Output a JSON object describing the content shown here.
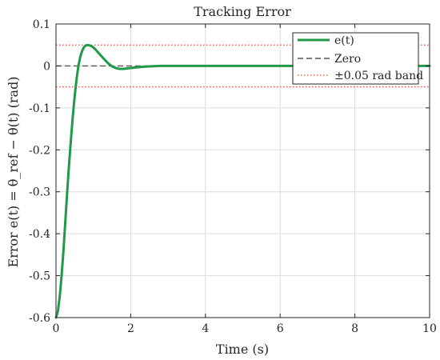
{
  "chart_data": {
    "type": "line",
    "title": "Tracking Error",
    "xlabel": "Time (s)",
    "ylabel": "Error e(t) = θ_ref − θ(t) (rad)",
    "xlim": [
      0,
      10
    ],
    "ylim": [
      -0.6,
      0.1
    ],
    "xticks": [
      0,
      2,
      4,
      6,
      8,
      10
    ],
    "xtick_labels": [
      "0",
      "2",
      "4",
      "6",
      "8",
      "10"
    ],
    "yticks": [
      -0.6,
      -0.5,
      -0.4,
      -0.3,
      -0.2,
      -0.1,
      0,
      0.1
    ],
    "ytick_labels": [
      "-0.6",
      "-0.5",
      "-0.4",
      "-0.3",
      "-0.2",
      "-0.1",
      "0",
      "0.1"
    ],
    "grid": true,
    "legend_position": "top-right",
    "series": [
      {
        "name": "e(t)",
        "style": "solid",
        "color": "#1f9a48",
        "x": [
          0,
          0.05,
          0.1,
          0.15,
          0.2,
          0.25,
          0.3,
          0.35,
          0.4,
          0.45,
          0.5,
          0.55,
          0.6,
          0.65,
          0.7,
          0.75,
          0.8,
          0.85,
          0.9,
          0.95,
          1.0,
          1.05,
          1.1,
          1.2,
          1.3,
          1.4,
          1.5,
          1.6,
          1.7,
          1.8,
          1.9,
          2.0,
          2.2,
          2.4,
          2.6,
          2.8,
          3.0,
          3.5,
          4.0,
          5.0,
          6.0,
          7.0,
          8.0,
          9.0,
          10.0
        ],
        "y": [
          -0.6,
          -0.585,
          -0.55,
          -0.5,
          -0.44,
          -0.37,
          -0.3,
          -0.235,
          -0.175,
          -0.12,
          -0.072,
          -0.032,
          0.0,
          0.022,
          0.036,
          0.045,
          0.049,
          0.05,
          0.049,
          0.047,
          0.044,
          0.04,
          0.035,
          0.025,
          0.015,
          0.006,
          -0.001,
          -0.005,
          -0.007,
          -0.007,
          -0.006,
          -0.005,
          -0.003,
          -0.0015,
          -0.0005,
          0.0,
          0.0,
          0.0,
          0.0,
          0.0,
          0.0,
          0.0,
          0.0,
          0.0,
          0.0
        ]
      },
      {
        "name": "Zero",
        "style": "dashed",
        "color": "#555555",
        "x": [
          0,
          10
        ],
        "y": [
          0,
          0
        ]
      },
      {
        "name": "±0.05 rad band",
        "style": "dotted",
        "color": "#e8483b",
        "bands": [
          0.05,
          -0.05
        ]
      }
    ]
  }
}
